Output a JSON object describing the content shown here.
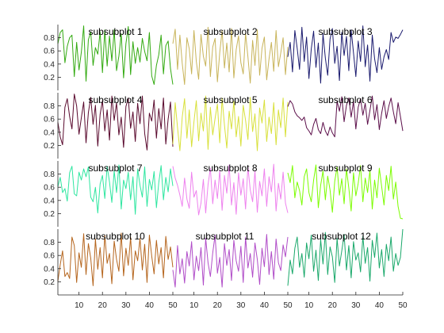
{
  "chart_data": {
    "type": "line",
    "layout": {
      "rows": 4,
      "cols": 3
    },
    "x_axis": {
      "range": [
        1,
        150
      ],
      "ticks": [
        10,
        20,
        30,
        40,
        50
      ],
      "tick_labels": [
        "10",
        "20",
        "30",
        "40",
        "50"
      ]
    },
    "y_axis": {
      "range": [
        0,
        1
      ],
      "ticks": [
        0.2,
        0.4,
        0.6,
        0.8
      ],
      "tick_labels": [
        "0.2",
        "0.4",
        "0.6",
        "0.8"
      ]
    },
    "grid": false,
    "series": [
      {
        "title": "subsubplot 1",
        "color": "#33aa11",
        "values": [
          0.71,
          0.88,
          0.92,
          0.42,
          0.67,
          0.8,
          0.84,
          0.21,
          0.73,
          0.31,
          0.58,
          0.98,
          0.14,
          0.77,
          0.89,
          0.38,
          0.65,
          0.55,
          0.89,
          0.27,
          0.92,
          0.37,
          0.83,
          0.45,
          0.92,
          0.3,
          0.52,
          0.86,
          0.19,
          0.71,
          0.97,
          0.24,
          0.74,
          0.41,
          0.65,
          0.43,
          0.79,
          0.59,
          0.45,
          0.88,
          0.22,
          0.09,
          0.38,
          0.54,
          0.84,
          0.25,
          0.68,
          0.75,
          0.33,
          0.09
        ]
      },
      {
        "title": "subsubplot 2",
        "color": "#c8b45a",
        "values": [
          0.71,
          0.93,
          0.32,
          0.84,
          0.41,
          0.09,
          0.8,
          0.63,
          0.25,
          0.91,
          0.44,
          0.17,
          0.85,
          0.52,
          0.37,
          0.96,
          0.21,
          0.66,
          0.79,
          0.13,
          0.58,
          0.91,
          0.34,
          0.72,
          0.28,
          0.94,
          0.19,
          0.62,
          0.83,
          0.42,
          0.25,
          0.87,
          0.51,
          0.11,
          0.76,
          0.38,
          0.92,
          0.23,
          0.64,
          0.81,
          0.16,
          0.48,
          0.73,
          0.29,
          0.91,
          0.36,
          0.57,
          0.8,
          0.24,
          0.66
        ]
      },
      {
        "title": "subsubplot 3",
        "color": "#1a1a6e",
        "values": [
          0.51,
          0.73,
          0.28,
          0.91,
          0.64,
          0.32,
          0.96,
          0.44,
          0.81,
          0.18,
          0.63,
          0.9,
          0.35,
          0.72,
          0.11,
          0.86,
          0.49,
          0.23,
          0.78,
          0.94,
          0.41,
          0.67,
          0.15,
          0.88,
          0.53,
          0.82,
          0.3,
          0.92,
          0.57,
          0.21,
          0.75,
          0.44,
          0.98,
          0.36,
          0.69,
          0.14,
          0.84,
          0.48,
          0.27,
          0.65,
          0.32,
          0.51,
          0.62,
          0.47,
          0.88,
          0.73,
          0.81,
          0.79,
          0.85,
          0.92
        ]
      },
      {
        "title": "subsubplot 4",
        "color": "#5a0a2e",
        "values": [
          0.55,
          0.33,
          0.21,
          0.78,
          0.91,
          0.64,
          0.45,
          0.98,
          0.8,
          0.37,
          0.62,
          0.86,
          0.24,
          0.7,
          0.93,
          0.52,
          0.81,
          0.19,
          0.67,
          0.88,
          0.42,
          0.74,
          0.28,
          0.95,
          0.58,
          0.85,
          0.36,
          0.63,
          0.17,
          0.79,
          0.92,
          0.46,
          0.71,
          0.26,
          0.84,
          0.53,
          0.95,
          0.38,
          0.13,
          0.69,
          0.57,
          0.89,
          0.31,
          0.76,
          0.45,
          0.92,
          0.22,
          0.6,
          0.86,
          0.18
        ]
      },
      {
        "title": "subsubplot 5",
        "color": "#d8e03a",
        "values": [
          0.22,
          0.85,
          0.47,
          0.12,
          0.63,
          0.91,
          0.31,
          0.74,
          0.18,
          0.56,
          0.88,
          0.27,
          0.69,
          0.42,
          0.95,
          0.14,
          0.78,
          0.36,
          0.61,
          0.83,
          0.24,
          0.92,
          0.51,
          0.16,
          0.72,
          0.45,
          0.87,
          0.33,
          0.64,
          0.19,
          0.81,
          0.58,
          0.29,
          0.93,
          0.41,
          0.68,
          0.12,
          0.77,
          0.54,
          0.89,
          0.26,
          0.63,
          0.38,
          0.85,
          0.21,
          0.74,
          0.47,
          0.92,
          0.33,
          0.86
        ]
      },
      {
        "title": "subsubplot 6",
        "color": "#5c0f4a",
        "values": [
          0.79,
          0.88,
          0.83,
          0.71,
          0.65,
          0.62,
          0.58,
          0.63,
          0.47,
          0.42,
          0.36,
          0.52,
          0.61,
          0.44,
          0.38,
          0.55,
          0.42,
          0.35,
          0.48,
          0.39,
          0.33,
          0.87,
          0.72,
          0.94,
          0.56,
          0.81,
          0.92,
          0.63,
          0.87,
          0.45,
          0.78,
          0.91,
          0.66,
          0.84,
          0.52,
          0.73,
          0.95,
          0.59,
          0.82,
          0.44,
          0.69,
          0.88,
          0.61,
          0.79,
          0.92,
          0.71,
          0.53,
          0.85,
          0.64,
          0.42
        ]
      },
      {
        "title": "subsubplot 7",
        "color": "#2ee6a0",
        "values": [
          0.61,
          0.75,
          0.52,
          0.58,
          0.39,
          0.82,
          0.92,
          0.5,
          0.47,
          0.83,
          0.71,
          0.88,
          0.76,
          0.91,
          0.45,
          0.38,
          0.6,
          0.21,
          0.65,
          0.78,
          0.43,
          0.92,
          0.68,
          0.37,
          0.85,
          0.52,
          0.94,
          0.27,
          0.71,
          0.58,
          0.83,
          0.41,
          0.76,
          0.19,
          0.88,
          0.63,
          0.45,
          0.91,
          0.31,
          0.72,
          0.56,
          0.84,
          0.29,
          0.67,
          0.93,
          0.41,
          0.75,
          0.53,
          0.88,
          0.62
        ]
      },
      {
        "title": "subsubplot 8",
        "color": "#ee82ee",
        "values": [
          0.92,
          0.74,
          0.63,
          0.48,
          0.31,
          0.74,
          0.42,
          0.28,
          0.83,
          0.45,
          0.55,
          0.18,
          0.36,
          0.72,
          0.21,
          0.64,
          0.89,
          0.35,
          0.71,
          0.43,
          0.86,
          0.25,
          0.78,
          0.51,
          0.94,
          0.33,
          0.67,
          0.19,
          0.82,
          0.48,
          0.73,
          0.27,
          0.91,
          0.56,
          0.38,
          0.85,
          0.22,
          0.69,
          0.47,
          0.88,
          0.31,
          0.76,
          0.53,
          0.95,
          0.24,
          0.66,
          0.42,
          0.83,
          0.36,
          0.21
        ]
      },
      {
        "title": "subsubplot 9",
        "color": "#7cfc00",
        "values": [
          0.82,
          0.67,
          0.93,
          0.44,
          0.68,
          0.55,
          0.33,
          0.76,
          0.88,
          0.52,
          0.38,
          0.71,
          0.94,
          0.29,
          0.63,
          0.85,
          0.41,
          0.77,
          0.56,
          0.22,
          0.69,
          0.91,
          0.48,
          0.73,
          0.35,
          0.88,
          0.59,
          0.24,
          0.82,
          0.47,
          0.66,
          0.93,
          0.38,
          0.74,
          0.52,
          0.86,
          0.27,
          0.71,
          0.44,
          0.89,
          0.61,
          0.33,
          0.78,
          0.55,
          0.92,
          0.42,
          0.68,
          0.31,
          0.13,
          0.12
        ]
      },
      {
        "title": "subsubplot 10",
        "color": "#b5651d",
        "values": [
          0.21,
          0.46,
          0.67,
          0.28,
          0.34,
          0.25,
          0.88,
          0.75,
          0.19,
          0.64,
          0.42,
          0.93,
          0.31,
          0.78,
          0.56,
          0.14,
          0.85,
          0.39,
          0.72,
          0.26,
          0.91,
          0.48,
          0.63,
          0.17,
          0.82,
          0.54,
          0.36,
          0.94,
          0.29,
          0.71,
          0.45,
          0.88,
          0.23,
          0.67,
          0.52,
          0.86,
          0.38,
          0.77,
          0.19,
          0.91,
          0.59,
          0.32,
          0.83,
          0.47,
          0.72,
          0.26,
          0.89,
          0.54,
          0.73,
          0.42
        ]
      },
      {
        "title": "subsubplot 11",
        "color": "#b04cc8",
        "values": [
          0.38,
          0.12,
          0.75,
          0.32,
          0.55,
          0.18,
          0.66,
          0.44,
          0.81,
          0.23,
          0.59,
          0.37,
          0.72,
          0.15,
          0.86,
          0.49,
          0.28,
          0.64,
          0.91,
          0.33,
          0.57,
          0.12,
          0.78,
          0.45,
          0.69,
          0.22,
          0.83,
          0.52,
          0.36,
          0.74,
          0.19,
          0.88,
          0.41,
          0.63,
          0.27,
          0.79,
          0.54,
          0.16,
          0.71,
          0.43,
          0.92,
          0.31,
          0.66,
          0.24,
          0.85,
          0.49,
          0.37,
          0.76,
          0.58,
          0.88
        ]
      },
      {
        "title": "subsubplot 12",
        "color": "#19a86a",
        "values": [
          0.14,
          0.53,
          0.32,
          0.71,
          0.88,
          0.42,
          0.63,
          0.27,
          0.79,
          0.55,
          0.91,
          0.36,
          0.68,
          0.22,
          0.84,
          0.47,
          0.95,
          0.31,
          0.73,
          0.58,
          0.19,
          0.86,
          0.44,
          0.67,
          0.92,
          0.38,
          0.75,
          0.26,
          0.81,
          0.53,
          0.64,
          0.35,
          0.89,
          0.48,
          0.72,
          0.21,
          0.83,
          0.57,
          0.94,
          0.41,
          0.69,
          0.28,
          0.77,
          0.52,
          0.88,
          0.36,
          0.63,
          0.45,
          0.57,
          1.0
        ]
      }
    ]
  }
}
